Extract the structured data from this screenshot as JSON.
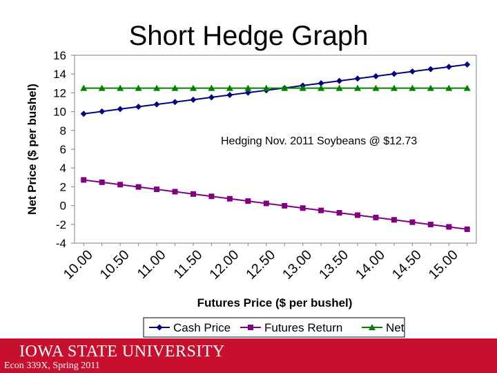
{
  "slide": {
    "title": "Short Hedge Graph"
  },
  "footer": {
    "university": "IOWA STATE UNIVERSITY",
    "course": "Econ 339X, Spring 2011",
    "bar_color": "#c8102e"
  },
  "chart_data": {
    "type": "line",
    "title": "",
    "xlabel": "Futures Price ($ per bushel)",
    "ylabel": "Net Price ($ per bushel)",
    "annotation": "Hedging Nov. 2011 Soybeans @ $12.73",
    "x": [
      10.0,
      10.25,
      10.5,
      10.75,
      11.0,
      11.25,
      11.5,
      11.75,
      12.0,
      12.25,
      12.5,
      12.75,
      13.0,
      13.25,
      13.5,
      13.75,
      14.0,
      14.25,
      14.5,
      14.75,
      15.0,
      15.25
    ],
    "x_tick_labels": [
      "10.00",
      "10.50",
      "11.00",
      "11.50",
      "12.00",
      "12.50",
      "13.00",
      "13.50",
      "14.00",
      "14.50",
      "15.00"
    ],
    "xlim": [
      9.875,
      15.375
    ],
    "ylim": [
      -4,
      16
    ],
    "y_ticks": [
      -4,
      -2,
      0,
      2,
      4,
      6,
      8,
      10,
      12,
      14,
      16
    ],
    "grid": false,
    "legend_position": "bottom",
    "series": [
      {
        "name": "Cash Price",
        "color": "#000080",
        "marker": "diamond",
        "values": [
          9.77,
          10.02,
          10.27,
          10.52,
          10.77,
          11.02,
          11.27,
          11.52,
          11.77,
          12.02,
          12.27,
          12.52,
          12.77,
          13.02,
          13.27,
          13.52,
          13.77,
          14.02,
          14.27,
          14.52,
          14.77,
          15.02
        ]
      },
      {
        "name": "Futures Return",
        "color": "#800080",
        "marker": "square",
        "values": [
          2.73,
          2.48,
          2.23,
          1.98,
          1.73,
          1.48,
          1.23,
          0.98,
          0.73,
          0.48,
          0.23,
          -0.02,
          -0.27,
          -0.52,
          -0.77,
          -1.02,
          -1.27,
          -1.52,
          -1.77,
          -2.02,
          -2.27,
          -2.52
        ]
      },
      {
        "name": "Net",
        "color": "#008000",
        "marker": "triangle",
        "values": [
          12.5,
          12.5,
          12.5,
          12.5,
          12.5,
          12.5,
          12.5,
          12.5,
          12.5,
          12.5,
          12.5,
          12.5,
          12.5,
          12.5,
          12.5,
          12.5,
          12.5,
          12.5,
          12.5,
          12.5,
          12.5,
          12.5
        ]
      }
    ]
  }
}
